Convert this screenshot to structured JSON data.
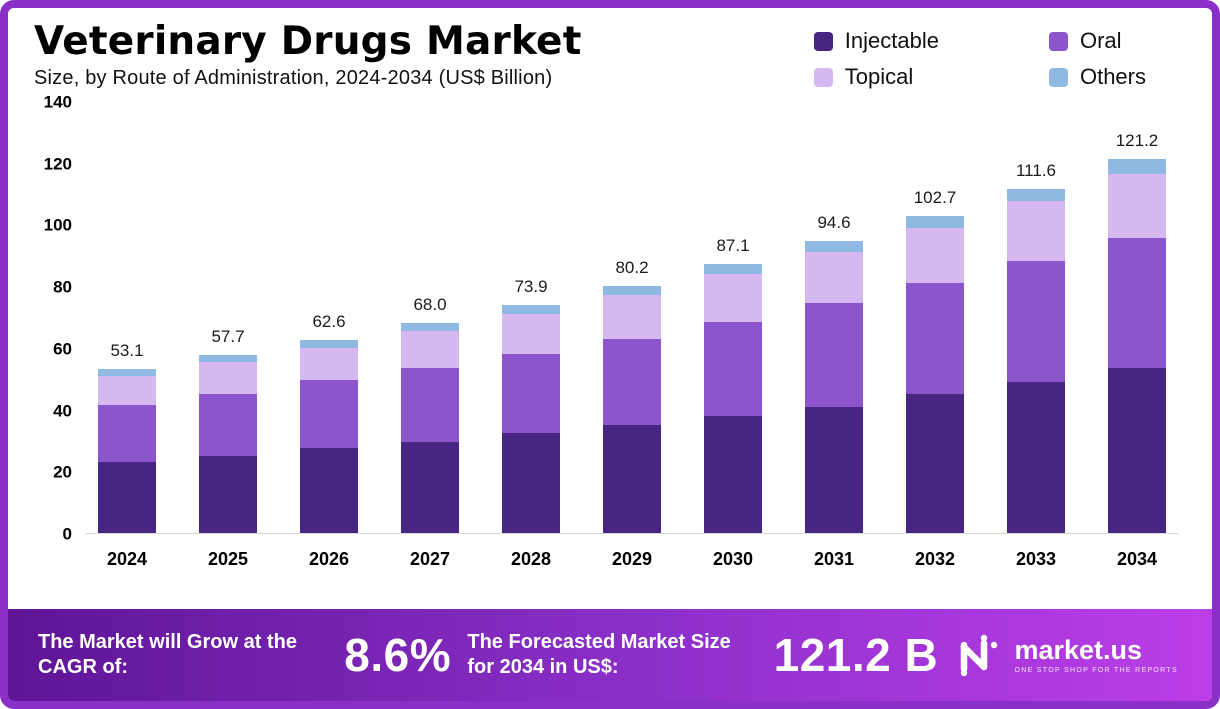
{
  "header": {
    "title": "Veterinary Drugs Market",
    "subtitle": "Size, by Route of Administration, 2024-2034 (US$ Billion)"
  },
  "chart_data": {
    "type": "bar",
    "stacked": true,
    "title": "Veterinary Drugs Market Size, by Route of Administration, 2024-2034 (US$ Billion)",
    "categories": [
      "2024",
      "2025",
      "2026",
      "2027",
      "2028",
      "2029",
      "2030",
      "2031",
      "2032",
      "2033",
      "2034"
    ],
    "series": [
      {
        "name": "Injectable",
        "color": "#472683",
        "values": [
          23.0,
          25.0,
          27.5,
          29.5,
          32.5,
          35.0,
          38.0,
          41.0,
          45.0,
          49.0,
          53.5
        ]
      },
      {
        "name": "Oral",
        "color": "#8d55cc",
        "values": [
          18.5,
          20.0,
          22.0,
          24.0,
          25.5,
          28.0,
          30.5,
          33.5,
          36.0,
          39.0,
          42.0
        ]
      },
      {
        "name": "Topical",
        "color": "#d5b8ef",
        "values": [
          9.5,
          10.5,
          10.5,
          12.0,
          13.0,
          14.0,
          15.5,
          16.5,
          18.0,
          19.5,
          21.0
        ]
      },
      {
        "name": "Others",
        "color": "#8fb9e2",
        "values": [
          2.1,
          2.2,
          2.6,
          2.5,
          2.9,
          3.2,
          3.1,
          3.6,
          3.7,
          4.1,
          4.7
        ]
      }
    ],
    "totals": [
      53.1,
      57.7,
      62.6,
      68.0,
      73.9,
      80.2,
      87.1,
      94.6,
      102.7,
      111.6,
      121.2
    ],
    "total_labels": [
      "53.1",
      "57.7",
      "62.6",
      "68.0",
      "73.9",
      "80.2",
      "87.1",
      "94.6",
      "102.7",
      "111.6",
      "121.2"
    ],
    "xlabel": "",
    "ylabel": "",
    "ylim": [
      0,
      140
    ],
    "yticks": [
      0,
      20,
      40,
      60,
      80,
      100,
      120,
      140
    ],
    "grid": false,
    "legend_position": "top-right"
  },
  "footer": {
    "cagr_label": "The Market will Grow at the CAGR of:",
    "cagr_value": "8.6%",
    "forecast_label": "The Forecasted Market Size for 2034 in US$:",
    "forecast_value": "121.2 B",
    "brand": "market.us",
    "brand_tagline": "ONE STOP SHOP FOR THE REPORTS"
  },
  "colors": {
    "border": "#8b2fc9",
    "footer_gradient_start": "#5f1596",
    "footer_gradient_end": "#bc3ee8"
  }
}
